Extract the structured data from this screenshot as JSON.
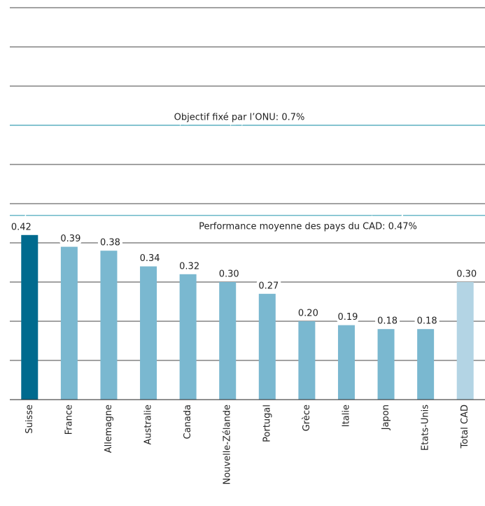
{
  "chart_data": {
    "type": "bar",
    "categories": [
      "Suisse",
      "France",
      "Allemagne",
      "Australie",
      "Canada",
      "Nouvelle-Zélande",
      "Portugal",
      "Grèce",
      "Italie",
      "Japon",
      "Etats-Unis",
      "Total CAD"
    ],
    "values": [
      0.42,
      0.39,
      0.38,
      0.34,
      0.32,
      0.3,
      0.27,
      0.2,
      0.19,
      0.18,
      0.18,
      0.3
    ],
    "value_labels": [
      "0.42",
      "0.39",
      "0.38",
      "0.34",
      "0.32",
      "0.30",
      "0.27",
      "0.20",
      "0.19",
      "0.18",
      "0.18",
      "0.30"
    ],
    "colors": [
      "#006a8e",
      "#7ab8d0",
      "#7ab8d0",
      "#7ab8d0",
      "#7ab8d0",
      "#7ab8d0",
      "#7ab8d0",
      "#7ab8d0",
      "#7ab8d0",
      "#7ab8d0",
      "#7ab8d0",
      "#b3d4e4"
    ],
    "ylim": [
      0,
      1.0
    ],
    "yticks": [
      0,
      0.1,
      0.2,
      0.3,
      0.4,
      0.5,
      0.6,
      0.7,
      0.8,
      0.9,
      1.0
    ],
    "grid": true,
    "annotations": [
      {
        "text": "Objectif fixé par l’ONU: 0.7%",
        "value": 0.7
      },
      {
        "text": "Performance moyenne des pays du CAD: 0.47%",
        "value": 0.47
      }
    ]
  }
}
